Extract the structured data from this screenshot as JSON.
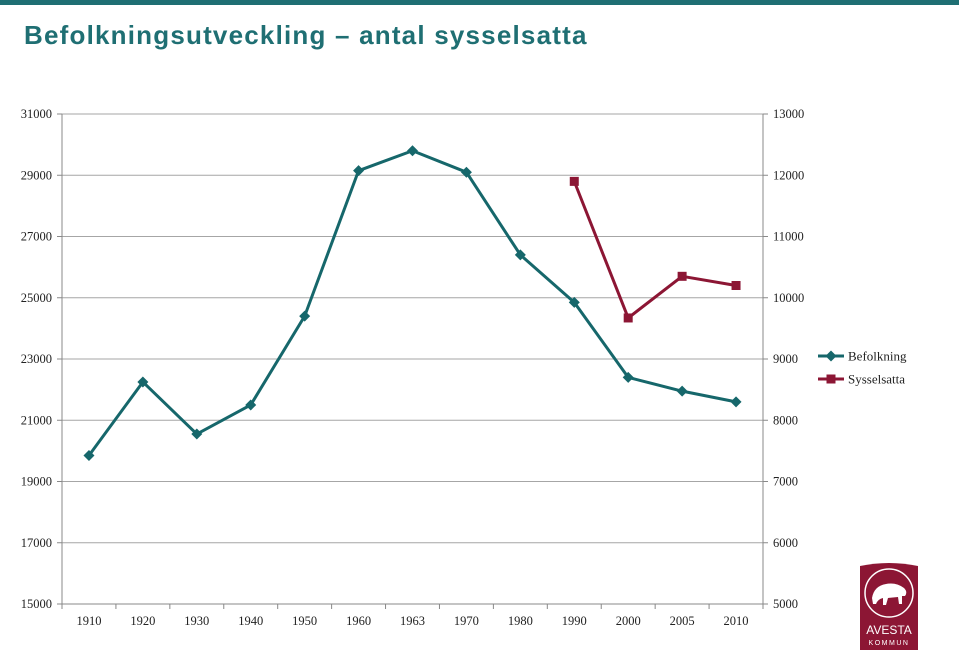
{
  "title": "Befolkningsutveckling – antal sysselsatta",
  "colors": {
    "accent": "#1f6f73",
    "befolkning": "#16676b",
    "sysselsatta": "#8c1634",
    "grid": "#a6a6a6",
    "logo": "#8c1634"
  },
  "chart_data": {
    "type": "line",
    "categories": [
      "1910",
      "1920",
      "1930",
      "1940",
      "1950",
      "1960",
      "1963",
      "1970",
      "1980",
      "1990",
      "2000",
      "2005",
      "2010"
    ],
    "y_left": {
      "min": 15000,
      "max": 31000,
      "ticks": [
        15000,
        17000,
        19000,
        21000,
        23000,
        25000,
        27000,
        29000,
        31000
      ]
    },
    "y_right": {
      "min": 5000,
      "max": 13000,
      "ticks": [
        5000,
        6000,
        7000,
        8000,
        9000,
        10000,
        11000,
        12000,
        13000
      ]
    },
    "grid": true,
    "legend_position": "right",
    "series": [
      {
        "name": "Befolkning",
        "axis": "left",
        "marker": "diamond",
        "values": [
          19850,
          22250,
          20550,
          21500,
          24400,
          29150,
          29800,
          29100,
          26400,
          24850,
          22400,
          21950,
          21600
        ]
      },
      {
        "name": "Sysselsatta",
        "axis": "right",
        "marker": "square",
        "values": [
          null,
          null,
          null,
          null,
          null,
          null,
          null,
          null,
          null,
          11900,
          9670,
          10350,
          10200
        ]
      }
    ]
  },
  "logo": {
    "text": "AVESTA",
    "subtext": "KOMMUN"
  }
}
